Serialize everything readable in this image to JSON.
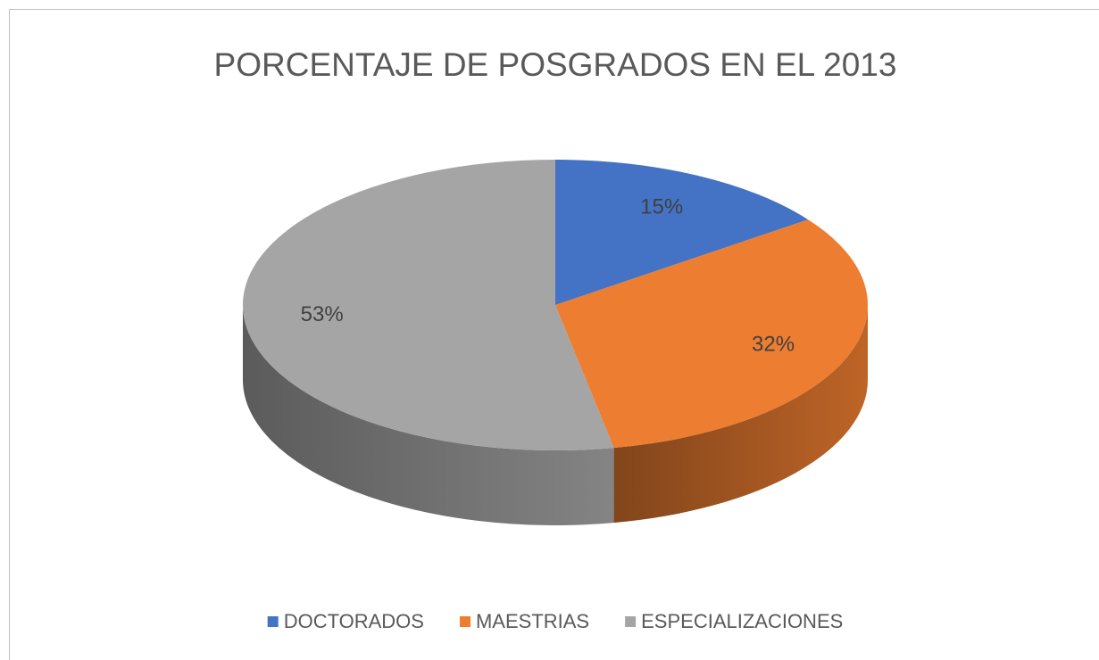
{
  "chart_data": {
    "type": "pie",
    "title": "PORCENTAJE DE POSGRADOS EN EL 2013",
    "categories": [
      "DOCTORADOS",
      "MAESTRIAS",
      "ESPECIALIZACIONES"
    ],
    "values": [
      15,
      32,
      53
    ],
    "value_labels": [
      "15%",
      "32%",
      "53%"
    ],
    "colors": [
      "#4472c4",
      "#ed7d31",
      "#a5a5a5"
    ],
    "legend": "bottom"
  }
}
